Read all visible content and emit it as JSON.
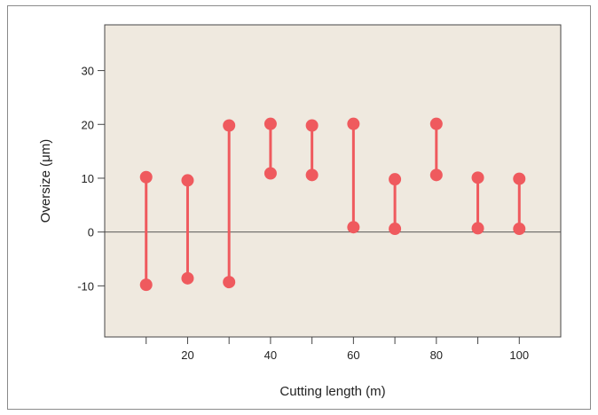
{
  "chart_data": {
    "type": "range-dot",
    "title": "",
    "xlabel": "Cutting length (m)",
    "ylabel": "Oversize (μm)",
    "xlim": [
      0,
      110
    ],
    "ylim": [
      -19.5,
      38.5
    ],
    "x_ticks": [
      10,
      20,
      30,
      40,
      50,
      60,
      70,
      80,
      90,
      100
    ],
    "x_tick_labels": [
      "",
      "20",
      "",
      "40",
      "",
      "60",
      "",
      "80",
      "",
      "100"
    ],
    "y_ticks": [
      -10,
      0,
      10,
      20,
      30
    ],
    "y_tick_labels": [
      "-10",
      "0",
      "10",
      "20",
      "30"
    ],
    "zero_line": true,
    "grid": false,
    "colors": {
      "marker": "#ef5a5e",
      "plot_background": "#efe9df",
      "axis": "#444444"
    },
    "x": [
      10,
      20,
      30,
      40,
      50,
      60,
      70,
      80,
      90,
      100
    ],
    "series": [
      {
        "role": "high",
        "values": [
          10.2,
          9.6,
          19.8,
          20.1,
          19.8,
          20.1,
          9.8,
          20.1,
          10.1,
          9.9
        ]
      },
      {
        "role": "low",
        "values": [
          -9.8,
          -8.6,
          -9.3,
          10.9,
          10.6,
          0.9,
          0.6,
          10.6,
          0.7,
          0.6
        ]
      }
    ]
  }
}
